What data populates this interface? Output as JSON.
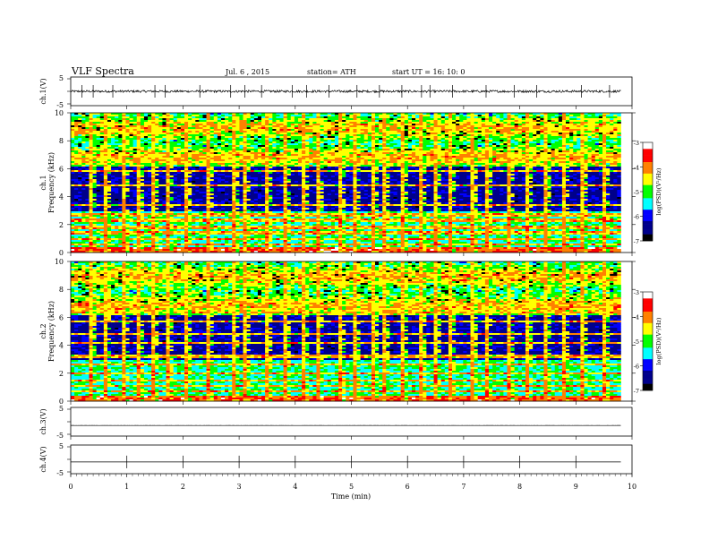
{
  "header": {
    "title": "VLF  Spectra",
    "date": "Jul.  6  , 2015",
    "station": "station= ATH",
    "start": "start  UT  =   16: 10: 0"
  },
  "xaxis": {
    "label": "Time  (min)",
    "ticks": [
      "0",
      "1",
      "2",
      "3",
      "4",
      "5",
      "6",
      "7",
      "8",
      "9",
      "10"
    ]
  },
  "panels": {
    "ch1_wave": {
      "ylabel": "ch.1(V)",
      "ticks": [
        "5",
        "-5"
      ]
    },
    "ch1_spec": {
      "ylabel_top": "ch.1",
      "ylabel_bot": "Frequency  (kHz)",
      "ticks": [
        "10",
        "8",
        "6",
        "4",
        "2",
        "0"
      ],
      "colorbar_label": "log(PSD)(V²/Hz)",
      "colorbar_ticks": [
        "-3",
        "-4",
        "-5",
        "-6",
        "-7"
      ]
    },
    "ch2_spec": {
      "ylabel_top": "ch.2",
      "ylabel_bot": "Frequency  (kHz)",
      "ticks": [
        "10",
        "8",
        "6",
        "4",
        "2",
        "0"
      ],
      "colorbar_label": "log(PSD)(V²/Hz)",
      "colorbar_ticks": [
        "-3",
        "-4",
        "-5",
        "-6",
        "-7"
      ]
    },
    "ch3_wave": {
      "ylabel": "ch.3(V)",
      "ticks": [
        "5",
        "-5"
      ]
    },
    "ch4_wave": {
      "ylabel": "ch.4(V)",
      "ticks": [
        "5",
        "-5"
      ]
    }
  },
  "chart_data": [
    {
      "type": "line",
      "name": "ch.1(V)",
      "x_range": [
        0,
        10
      ],
      "ylim": [
        -5,
        5
      ],
      "baseline": 0.0,
      "noise_amplitude": 0.4,
      "record_end_min": 9.8,
      "spikes_min": [
        0.2,
        0.4,
        0.75,
        1.5,
        1.68,
        2.3,
        2.85,
        3.1,
        3.4,
        3.95,
        4.2,
        4.6,
        5.1,
        5.5,
        5.9,
        6.25,
        6.4,
        6.8,
        7.4,
        7.9,
        8.3,
        9.1,
        9.6
      ]
    },
    {
      "type": "heatmap",
      "name": "ch.1",
      "x_range": [
        0,
        10
      ],
      "y_range": [
        0,
        10
      ],
      "record_end_min": 9.8,
      "colorscale_range": [
        -7,
        -3
      ],
      "colorscale": [
        "#000000",
        "#00008b",
        "#0000ff",
        "#00ffff",
        "#00ff00",
        "#ffff00",
        "#ff8000",
        "#ff0000",
        "#ffffff"
      ],
      "description_bands": "quiet 4-6 kHz, hiss > 6 kHz, tonal lines < 3 kHz",
      "sferic_columns_min": [
        0.3,
        0.6,
        0.9,
        1.2,
        1.45,
        1.7,
        2.05,
        2.4,
        2.85,
        3.1,
        3.45,
        3.8,
        4.1,
        4.4,
        4.8,
        5.05,
        5.35,
        5.55,
        5.85,
        6.2,
        6.45,
        6.75,
        7.1,
        7.4,
        7.75,
        8.1,
        8.4,
        8.75,
        9.1,
        9.45
      ]
    },
    {
      "type": "heatmap",
      "name": "ch.2",
      "x_range": [
        0,
        10
      ],
      "y_range": [
        0,
        10
      ],
      "record_end_min": 9.8,
      "colorscale_range": [
        -7,
        -3
      ],
      "colorscale": [
        "#000000",
        "#00008b",
        "#0000ff",
        "#00ffff",
        "#00ff00",
        "#ffff00",
        "#ff8000",
        "#ff0000",
        "#ffffff"
      ],
      "sferic_columns_min": [
        0.3,
        0.6,
        0.9,
        1.2,
        1.45,
        1.7,
        2.05,
        2.4,
        2.85,
        3.1,
        3.45,
        3.8,
        4.1,
        4.4,
        4.8,
        5.05,
        5.35,
        5.55,
        5.85,
        6.2,
        6.45,
        6.75,
        7.1,
        7.4,
        7.75,
        8.1,
        8.4,
        8.75,
        9.1,
        9.45
      ]
    },
    {
      "type": "line",
      "name": "ch.3(V)",
      "x_range": [
        0,
        10
      ],
      "ylim": [
        -5,
        5
      ],
      "baseline": -1.3,
      "noise_amplitude": 0.02,
      "record_end_min": 9.8
    },
    {
      "type": "line",
      "name": "ch.4(V)",
      "x_range": [
        0,
        10
      ],
      "ylim": [
        -5,
        5
      ],
      "baseline": -0.9,
      "noise_amplitude": 0.0,
      "record_end_min": 9.8,
      "spikes_min": [
        1,
        2,
        3,
        4,
        5,
        6,
        7,
        8,
        9
      ]
    }
  ]
}
